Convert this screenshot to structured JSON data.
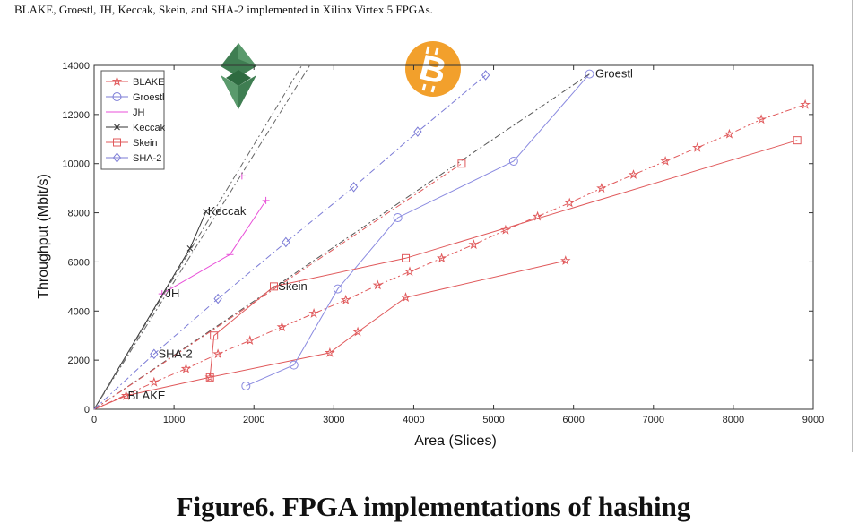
{
  "page": {
    "caption_top": "BLAKE, Groestl, JH, Keccak, Skein, and SHA-2 implemented in Xilinx Virtex 5 FPGAs.",
    "figure_caption": "Figure6. FPGA implementations of hashing"
  },
  "icons": {
    "ethereum": "ethereum-classic-logo-icon",
    "bitcoin": "bitcoin-logo-icon",
    "bitcoin_color": "#f2a02c",
    "ethereum_color": "#3f7e52"
  },
  "chart_data": {
    "type": "line",
    "xlabel": "Area (Slices)",
    "ylabel": "Throughput (Mbit/s)",
    "xlim": [
      0,
      9000
    ],
    "ylim": [
      0,
      14000
    ],
    "x_ticks": [
      0,
      1000,
      2000,
      3000,
      4000,
      5000,
      6000,
      7000,
      8000,
      9000
    ],
    "y_ticks": [
      0,
      2000,
      4000,
      6000,
      8000,
      10000,
      12000,
      14000
    ],
    "grid": false,
    "legend_position": "top-left",
    "series": [
      {
        "name": "BLAKE",
        "color": "#e0595b",
        "marker": "star",
        "line": "solid",
        "x": [
          0,
          400,
          1450,
          2950,
          3300,
          3900,
          5900
        ],
        "y": [
          0,
          550,
          1300,
          2300,
          3150,
          4550,
          6050
        ]
      },
      {
        "name": "BLAKE",
        "color": "#e0595b",
        "marker": "star",
        "line": "dashdot",
        "x": [
          0,
          750,
          1150,
          1550,
          1950,
          2350,
          2750,
          3150,
          3550,
          3950,
          4350,
          4750,
          5150,
          5550,
          5950,
          6350,
          6750,
          7150,
          7550,
          7950,
          8350,
          8900
        ],
        "y": [
          0,
          1100,
          1650,
          2250,
          2800,
          3350,
          3900,
          4450,
          5050,
          5600,
          6150,
          6700,
          7300,
          7850,
          8400,
          9000,
          9550,
          10100,
          10650,
          11200,
          11800,
          12400
        ]
      },
      {
        "name": "Groestl",
        "color": "#8a8ae0",
        "marker": "circle",
        "line": "solid",
        "x": [
          1900,
          2500,
          3050,
          3800,
          5250,
          6200
        ],
        "y": [
          950,
          1800,
          4900,
          7800,
          10100,
          13650
        ]
      },
      {
        "name": "Groestl",
        "color": "#555555",
        "marker": "none",
        "line": "dashdot",
        "x": [
          0,
          6200
        ],
        "y": [
          0,
          13650
        ]
      },
      {
        "name": "JH",
        "color": "#e84fd8",
        "marker": "plus",
        "line": "solid",
        "x": [
          850,
          1700,
          2150
        ],
        "y": [
          4700,
          6300,
          8500
        ]
      },
      {
        "name": "JH",
        "color": "#e84fd8",
        "marker": "plus",
        "line": "none",
        "x": [
          1850
        ],
        "y": [
          9500
        ]
      },
      {
        "name": "Keccak",
        "color": "#333333",
        "marker": "cross",
        "line": "solid",
        "x": [
          0,
          1200,
          1400
        ],
        "y": [
          0,
          6550,
          8050
        ]
      },
      {
        "name": "Keccak",
        "color": "#666666",
        "marker": "none",
        "line": "dashdot",
        "x": [
          0,
          2600
        ],
        "y": [
          0,
          14000
        ]
      },
      {
        "name": "Keccak",
        "color": "#666666",
        "marker": "none",
        "line": "dashdot",
        "x": [
          0,
          2700
        ],
        "y": [
          0,
          14000
        ]
      },
      {
        "name": "Skein",
        "color": "#e0595b",
        "marker": "square",
        "line": "solid",
        "x": [
          1450,
          1500,
          2250,
          3900,
          8800
        ],
        "y": [
          1300,
          3000,
          5000,
          6150,
          10950
        ]
      },
      {
        "name": "Skein",
        "color": "#e0595b",
        "marker": "square",
        "line": "dashdot",
        "x": [
          0,
          4600
        ],
        "y": [
          0,
          10000
        ]
      },
      {
        "name": "SHA-2",
        "color": "#7b7bd6",
        "marker": "diamond",
        "line": "dashdot",
        "x": [
          0,
          750,
          1550,
          2400,
          3250,
          4050,
          4900
        ],
        "y": [
          0,
          2250,
          4500,
          6800,
          9050,
          11300,
          13600
        ]
      }
    ],
    "legend": [
      "BLAKE",
      "Groestl",
      "JH",
      "Keccak",
      "Skein",
      "SHA-2"
    ],
    "annotations": [
      {
        "text": "BLAKE",
        "x": 400,
        "y": 550
      },
      {
        "text": "SHA-2",
        "x": 780,
        "y": 2250
      },
      {
        "text": "JH",
        "x": 870,
        "y": 4700
      },
      {
        "text": "Skein",
        "x": 2280,
        "y": 5000
      },
      {
        "text": "Keccak",
        "x": 1400,
        "y": 8050
      },
      {
        "text": "Groestl",
        "x": 6250,
        "y": 13650
      }
    ]
  }
}
